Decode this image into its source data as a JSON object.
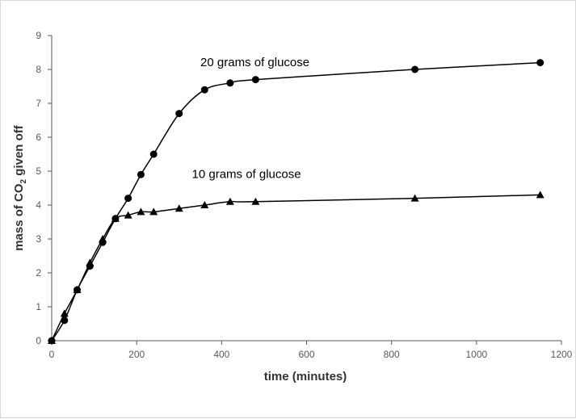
{
  "chart_data": {
    "type": "line",
    "xlabel": "time (minutes)",
    "ylabel": {
      "prefix": "mass of CO",
      "sub": "2",
      "suffix": " given off"
    },
    "xlim": [
      0,
      1200
    ],
    "ylim": [
      0,
      9
    ],
    "xticks": [
      0,
      200,
      400,
      600,
      800,
      1000,
      1200
    ],
    "yticks": [
      0,
      1,
      2,
      3,
      4,
      5,
      6,
      7,
      8,
      9
    ],
    "grid": false,
    "legend": "none",
    "series": [
      {
        "name": "20 grams of glucose",
        "marker": "circle",
        "x": [
          0,
          30,
          60,
          90,
          120,
          150,
          180,
          210,
          240,
          300,
          360,
          420,
          480,
          855,
          1150
        ],
        "y": [
          0,
          0.6,
          1.5,
          2.2,
          2.9,
          3.6,
          4.2,
          4.9,
          5.5,
          6.7,
          7.4,
          7.6,
          7.7,
          8.0,
          8.2
        ]
      },
      {
        "name": "10 grams of glucose",
        "marker": "triangle",
        "x": [
          0,
          30,
          60,
          90,
          120,
          150,
          180,
          210,
          240,
          300,
          360,
          420,
          480,
          855,
          1150
        ],
        "y": [
          0,
          0.8,
          1.5,
          2.3,
          3.0,
          3.6,
          3.7,
          3.8,
          3.8,
          3.9,
          4.0,
          4.1,
          4.1,
          4.2,
          4.3
        ]
      }
    ],
    "annotations": [
      {
        "text": "20 grams of glucose",
        "x": 350,
        "y": 8.1
      },
      {
        "text": "10 grams of glucose",
        "x": 330,
        "y": 4.8
      }
    ],
    "line_color": "#000000",
    "axis_color": "#595959"
  }
}
